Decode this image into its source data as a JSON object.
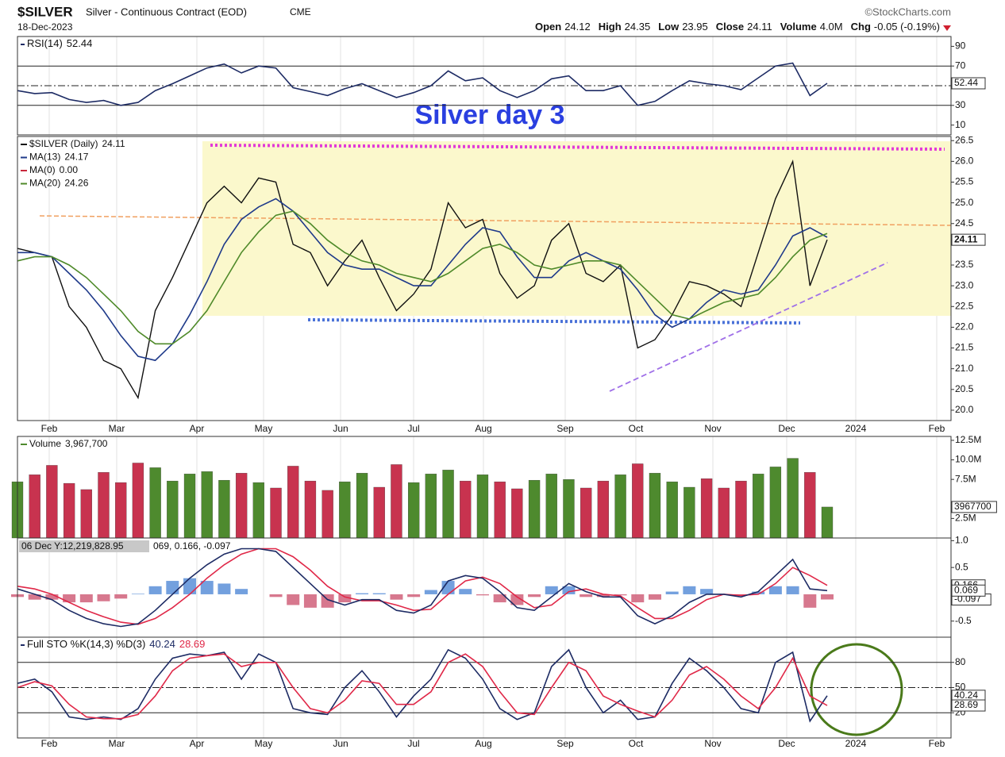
{
  "header": {
    "symbol": "$SILVER",
    "name": "Silver - Continuous Contract (EOD)",
    "exchange": "CME",
    "credit": "©StockCharts.com",
    "date": "18-Dec-2023",
    "quote": [
      {
        "label": "Open",
        "value": "24.12"
      },
      {
        "label": "High",
        "value": "24.35"
      },
      {
        "label": "Low",
        "value": "23.95"
      },
      {
        "label": "Close",
        "value": "24.11"
      },
      {
        "label": "Volume",
        "value": "4.0M"
      },
      {
        "label": "Chg",
        "value": "-0.05 (-0.19%)"
      }
    ]
  },
  "annotation": "Silver day 3",
  "xticks": [
    "Feb",
    "Mar",
    "Apr",
    "May",
    "Jun",
    "Jul",
    "Aug",
    "Sep",
    "Oct",
    "Nov",
    "Dec",
    "2024",
    "Feb"
  ],
  "chart_data": [
    {
      "type": "line",
      "legend": "inline",
      "title": "RSI(14)",
      "ylim": [
        0,
        100
      ],
      "yticks": [
        90,
        70,
        30,
        10
      ],
      "hlines": [
        {
          "value": 70,
          "style": "solid"
        },
        {
          "value": 50,
          "style": "dashdot"
        },
        {
          "value": 30,
          "style": "solid"
        }
      ],
      "series": [
        {
          "color": "#1d2b64",
          "box": true,
          "values": [
            45,
            42,
            43,
            36,
            33,
            35,
            30,
            33,
            45,
            52,
            60,
            68,
            72,
            63,
            70,
            68,
            48,
            44,
            40,
            47,
            52,
            45,
            38,
            43,
            50,
            65,
            55,
            58,
            45,
            38,
            45,
            57,
            60,
            45,
            45,
            50,
            30,
            34,
            45,
            55,
            52,
            50,
            46,
            58,
            70,
            73,
            40,
            52.44
          ]
        }
      ]
    },
    {
      "type": "line",
      "legend": "rows",
      "ylim": [
        19.75,
        26.6
      ],
      "yticks": [
        26.5,
        {
          "value": 26,
          "label": "26.0"
        },
        25.5,
        {
          "value": 25,
          "label": "25.0"
        },
        24.5,
        23.5,
        {
          "value": 23,
          "label": "23.0"
        },
        22.5,
        {
          "value": 22,
          "label": "22.0"
        },
        21.5,
        {
          "value": 21,
          "label": "21.0"
        },
        20.5,
        {
          "value": 20,
          "label": "20.0"
        }
      ],
      "series": [
        {
          "name": "$SILVER (Daily)",
          "color": "#111111",
          "box": true,
          "values": [
            23.9,
            23.8,
            23.7,
            22.5,
            22.0,
            21.2,
            21.0,
            20.3,
            22.4,
            23.2,
            24.1,
            25.0,
            25.4,
            25.0,
            25.6,
            25.5,
            24.0,
            23.8,
            23.0,
            23.6,
            24.1,
            23.2,
            22.4,
            22.8,
            23.4,
            25.0,
            24.4,
            24.6,
            23.3,
            22.7,
            23.0,
            24.1,
            24.5,
            23.3,
            23.1,
            23.5,
            21.5,
            21.7,
            22.3,
            23.1,
            23.0,
            22.8,
            22.5,
            23.8,
            25.1,
            26.0,
            23.0,
            24.11
          ]
        },
        {
          "name": "MA(13)",
          "color": "#1f3a8a",
          "values": [
            23.8,
            23.8,
            23.7,
            23.3,
            22.9,
            22.4,
            21.8,
            21.3,
            21.2,
            21.6,
            22.3,
            23.1,
            24.0,
            24.6,
            24.9,
            25.1,
            24.8,
            24.3,
            23.8,
            23.5,
            23.4,
            23.4,
            23.2,
            23.0,
            23.0,
            23.5,
            24.0,
            24.4,
            24.3,
            23.7,
            23.2,
            23.2,
            23.6,
            23.8,
            23.6,
            23.4,
            22.9,
            22.3,
            22.0,
            22.2,
            22.6,
            22.9,
            22.8,
            22.9,
            23.5,
            24.2,
            24.4,
            24.17
          ]
        },
        {
          "name": "MA(0)",
          "color": "#c8283c",
          "label": "0.00"
        },
        {
          "name": "MA(20)",
          "color": "#4f8a2a",
          "values": [
            23.6,
            23.7,
            23.7,
            23.5,
            23.2,
            22.8,
            22.4,
            21.9,
            21.6,
            21.6,
            21.9,
            22.4,
            23.1,
            23.8,
            24.3,
            24.7,
            24.8,
            24.5,
            24.1,
            23.8,
            23.6,
            23.5,
            23.3,
            23.2,
            23.1,
            23.3,
            23.6,
            23.9,
            24.0,
            23.8,
            23.5,
            23.4,
            23.5,
            23.6,
            23.6,
            23.5,
            23.1,
            22.7,
            22.3,
            22.2,
            22.4,
            22.6,
            22.7,
            22.8,
            23.2,
            23.7,
            24.1,
            24.26
          ]
        }
      ]
    },
    {
      "type": "bar",
      "legend": "rows",
      "ylim": [
        0,
        13000000
      ],
      "yticks": [
        {
          "value": 12500000,
          "label": "12.5M"
        },
        {
          "value": 10000000,
          "label": "10.0M"
        },
        {
          "value": 7500000,
          "label": "7.5M"
        },
        {
          "value": 2500000,
          "label": "2.5M"
        }
      ],
      "series": [
        {
          "name": "Volume",
          "value_label": "3,967,700",
          "color": "#4e8a2e",
          "down_color": "#c8334f",
          "box": true,
          "values": [
            7200000,
            8100000,
            9300000,
            7000000,
            6200000,
            8400000,
            7100000,
            9600000,
            9000000,
            7300000,
            8200000,
            8500000,
            7400000,
            8300000,
            7100000,
            6400000,
            9200000,
            7300000,
            6100000,
            7200000,
            8300000,
            6500000,
            9400000,
            7100000,
            8200000,
            8700000,
            7300000,
            8100000,
            7200000,
            6300000,
            7400000,
            8200000,
            7500000,
            6400000,
            7300000,
            8100000,
            9500000,
            8300000,
            7200000,
            6500000,
            7600000,
            6400000,
            7300000,
            8200000,
            9100000,
            10200000,
            8400000,
            3967700
          ]
        }
      ]
    },
    {
      "type": "line",
      "legend": "text",
      "tooltip": "06 Dec Y:12,219,828.95",
      "legend_text": "069, 0.166, -0.097",
      "ylim": [
        -0.8,
        1.05
      ],
      "yticks": [
        {
          "value": 1,
          "label": "1.0"
        },
        0.5,
        -0.5
      ],
      "series": [
        {
          "style": "histogram",
          "color": "#5b8fd8",
          "down_color": "#d0607a",
          "box": true,
          "values": [
            -0.05,
            -0.1,
            -0.1,
            -0.15,
            -0.15,
            -0.13,
            -0.08,
            0.01,
            0.15,
            0.25,
            0.3,
            0.25,
            0.2,
            0.1,
            0,
            -0.05,
            -0.2,
            -0.25,
            -0.25,
            -0.15,
            0.02,
            0.02,
            -0.1,
            -0.05,
            0.08,
            0.25,
            0.1,
            -0.02,
            -0.15,
            -0.2,
            -0.05,
            0.15,
            0.15,
            -0.05,
            -0.05,
            -0.02,
            -0.15,
            -0.1,
            0.05,
            0.15,
            0.1,
            0,
            -0.03,
            0.05,
            0.15,
            0.15,
            -0.25,
            -0.097
          ]
        },
        {
          "color": "#e02848",
          "box": true,
          "values": [
            0.15,
            0.1,
            0.0,
            -0.15,
            -0.3,
            -0.42,
            -0.52,
            -0.56,
            -0.45,
            -0.25,
            0.0,
            0.3,
            0.55,
            0.75,
            0.85,
            0.85,
            0.7,
            0.45,
            0.15,
            -0.05,
            -0.12,
            -0.12,
            -0.2,
            -0.3,
            -0.28,
            0.0,
            0.25,
            0.32,
            0.2,
            -0.05,
            -0.25,
            -0.2,
            0.05,
            0.1,
            0.0,
            -0.03,
            -0.25,
            -0.45,
            -0.45,
            -0.3,
            -0.1,
            0.0,
            -0.02,
            0.0,
            0.2,
            0.5,
            0.35,
            0.166
          ]
        },
        {
          "color": "#1d2b64",
          "box": true,
          "values": [
            0.1,
            0.0,
            -0.1,
            -0.3,
            -0.45,
            -0.55,
            -0.6,
            -0.55,
            -0.3,
            0.0,
            0.3,
            0.55,
            0.75,
            0.85,
            0.85,
            0.8,
            0.5,
            0.2,
            -0.1,
            -0.2,
            -0.1,
            -0.1,
            -0.3,
            -0.35,
            -0.2,
            0.25,
            0.35,
            0.3,
            0.05,
            -0.25,
            -0.3,
            -0.05,
            0.2,
            0.05,
            -0.05,
            -0.05,
            -0.4,
            -0.55,
            -0.4,
            -0.15,
            0.0,
            0.0,
            -0.05,
            0.05,
            0.35,
            0.65,
            0.1,
            0.069
          ]
        }
      ]
    },
    {
      "type": "line",
      "legend": "inline",
      "title": "Full STO %K(14,3) %D(3)",
      "ylim": [
        -10,
        110
      ],
      "yticks": [
        80,
        50,
        20
      ],
      "hlines": [
        {
          "value": 80,
          "style": "solid"
        },
        {
          "value": 50,
          "style": "dashdot"
        },
        {
          "value": 20,
          "style": "solid"
        }
      ],
      "series": [
        {
          "color": "#1d2b64",
          "box": true,
          "values": [
            55,
            60,
            45,
            15,
            12,
            15,
            12,
            25,
            60,
            85,
            90,
            88,
            92,
            60,
            90,
            80,
            25,
            20,
            18,
            50,
            70,
            45,
            15,
            40,
            60,
            95,
            85,
            60,
            25,
            12,
            20,
            75,
            95,
            50,
            20,
            35,
            12,
            15,
            55,
            85,
            70,
            50,
            25,
            20,
            80,
            92,
            10,
            40.24
          ]
        },
        {
          "color": "#e02848",
          "box": true,
          "values": [
            50,
            57,
            52,
            30,
            15,
            13,
            13,
            18,
            40,
            70,
            85,
            88,
            90,
            75,
            80,
            80,
            50,
            25,
            20,
            35,
            58,
            55,
            30,
            30,
            45,
            80,
            90,
            75,
            45,
            20,
            18,
            50,
            80,
            70,
            40,
            30,
            22,
            15,
            35,
            65,
            75,
            60,
            40,
            25,
            50,
            85,
            40,
            28.69
          ]
        }
      ]
    }
  ]
}
